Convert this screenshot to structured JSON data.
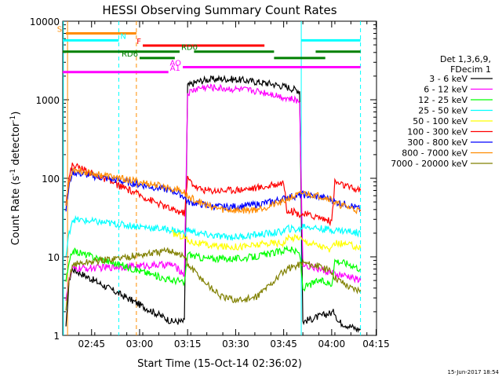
{
  "chart_data": {
    "type": "line",
    "title": "HESSI Observing Summary Count Rates",
    "xlabel": "Start Time (15-Oct-14 02:36:02)",
    "ylabel_main": "Count Rate (s",
    "ylabel_sup1": "-1",
    "ylabel_mid": " detector",
    "ylabel_sup2": "-1",
    "ylabel_end": ")",
    "yscale": "log",
    "ylim": [
      1,
      10000
    ],
    "xlim_minutes": [
      0,
      98
    ],
    "x_ticks": [
      {
        "label": "02:45",
        "minute": 9
      },
      {
        "label": "03:00",
        "minute": 24
      },
      {
        "label": "03:15",
        "minute": 39
      },
      {
        "label": "03:30",
        "minute": 54
      },
      {
        "label": "03:45",
        "minute": 69
      },
      {
        "label": "04:00",
        "minute": 84
      },
      {
        "label": "04:15",
        "minute": 99
      }
    ],
    "y_ticks": [
      {
        "label": "1",
        "value": 1
      },
      {
        "label": "10",
        "value": 10
      },
      {
        "label": "100",
        "value": 100
      },
      {
        "label": "1000",
        "value": 1000
      },
      {
        "label": "10000",
        "value": 10000
      }
    ],
    "legend_header": [
      "Det 1,3,6,9,",
      "FDecim 1"
    ],
    "legend_position": "right",
    "series": [
      {
        "name": "3 - 6 keV",
        "color": "#000000",
        "points": [
          [
            1,
            1.2
          ],
          [
            2,
            5
          ],
          [
            3,
            7
          ],
          [
            34,
            1.5
          ],
          [
            36,
            1.5
          ],
          [
            38,
            1.5
          ],
          [
            39,
            1500
          ],
          [
            42,
            1700
          ],
          [
            45,
            1800
          ],
          [
            50,
            1850
          ],
          [
            55,
            1800
          ],
          [
            60,
            1700
          ],
          [
            65,
            1600
          ],
          [
            70,
            1450
          ],
          [
            74,
            1300
          ],
          [
            75,
            1.5
          ],
          [
            85,
            2
          ],
          [
            86,
            1.5
          ],
          [
            92,
            1.2
          ],
          [
            93,
            1.2
          ]
        ]
      },
      {
        "name": "6 - 12 keV",
        "color": "#ff00ff",
        "points": [
          [
            1,
            3
          ],
          [
            2,
            5
          ],
          [
            3,
            7
          ],
          [
            34,
            8
          ],
          [
            36,
            7
          ],
          [
            38,
            6
          ],
          [
            39,
            1200
          ],
          [
            42,
            1400
          ],
          [
            45,
            1450
          ],
          [
            50,
            1400
          ],
          [
            55,
            1350
          ],
          [
            60,
            1300
          ],
          [
            65,
            1200
          ],
          [
            70,
            1050
          ],
          [
            74,
            950
          ],
          [
            75,
            8
          ],
          [
            80,
            7
          ],
          [
            85,
            6
          ],
          [
            90,
            5.5
          ],
          [
            93,
            5
          ]
        ]
      },
      {
        "name": "12 - 25 keV",
        "color": "#00ff00",
        "points": [
          [
            1,
            5
          ],
          [
            2,
            8
          ],
          [
            3,
            12
          ],
          [
            34,
            5
          ],
          [
            36,
            5
          ],
          [
            38,
            4.5
          ],
          [
            39,
            11
          ],
          [
            42,
            10
          ],
          [
            45,
            9.5
          ],
          [
            50,
            9.5
          ],
          [
            55,
            9.5
          ],
          [
            60,
            10
          ],
          [
            65,
            11
          ],
          [
            69,
            12
          ],
          [
            70,
            13
          ],
          [
            74,
            11
          ],
          [
            75,
            4
          ],
          [
            80,
            5
          ],
          [
            84,
            4.5
          ],
          [
            85,
            9
          ],
          [
            90,
            8
          ],
          [
            93,
            7
          ]
        ]
      },
      {
        "name": "25 - 50 keV",
        "color": "#00ffff",
        "points": [
          [
            1,
            10
          ],
          [
            2,
            20
          ],
          [
            3,
            30
          ],
          [
            34,
            22
          ],
          [
            36,
            21
          ],
          [
            38,
            20
          ],
          [
            39,
            22
          ],
          [
            42,
            20
          ],
          [
            45,
            19
          ],
          [
            50,
            18
          ],
          [
            55,
            18
          ],
          [
            60,
            19
          ],
          [
            65,
            20
          ],
          [
            69,
            21
          ],
          [
            70,
            23
          ],
          [
            74,
            22
          ],
          [
            75,
            25
          ],
          [
            80,
            23
          ],
          [
            84,
            22
          ],
          [
            85,
            22
          ],
          [
            90,
            21
          ],
          [
            93,
            20
          ]
        ]
      },
      {
        "name": "50 - 100 keV",
        "color": "#ffff00",
        "points": [
          [
            34,
            20
          ],
          [
            36,
            19
          ],
          [
            38,
            18
          ],
          [
            39,
            16
          ],
          [
            42,
            15
          ],
          [
            45,
            14
          ],
          [
            50,
            13.5
          ],
          [
            55,
            13.5
          ],
          [
            60,
            14
          ],
          [
            65,
            15
          ],
          [
            69,
            15
          ],
          [
            70,
            17
          ],
          [
            74,
            18
          ],
          [
            75,
            16
          ],
          [
            80,
            14
          ],
          [
            84,
            12
          ],
          [
            85,
            15
          ],
          [
            90,
            14
          ],
          [
            93,
            13
          ]
        ]
      },
      {
        "name": "100 - 300 keV",
        "color": "#ff0000",
        "points": [
          [
            1,
            50
          ],
          [
            2,
            100
          ],
          [
            3,
            150
          ],
          [
            34,
            40
          ],
          [
            36,
            38
          ],
          [
            38,
            36
          ],
          [
            39,
            100
          ],
          [
            42,
            75
          ],
          [
            45,
            70
          ],
          [
            50,
            70
          ],
          [
            55,
            72
          ],
          [
            60,
            75
          ],
          [
            65,
            80
          ],
          [
            69,
            90
          ],
          [
            70,
            40
          ],
          [
            74,
            35
          ],
          [
            75,
            35
          ],
          [
            80,
            32
          ],
          [
            84,
            28
          ],
          [
            85,
            90
          ],
          [
            90,
            75
          ],
          [
            93,
            70
          ]
        ]
      },
      {
        "name": "300 - 800 keV",
        "color": "#0000ff",
        "points": [
          [
            1,
            40
          ],
          [
            2,
            80
          ],
          [
            3,
            120
          ],
          [
            34,
            70
          ],
          [
            36,
            65
          ],
          [
            38,
            58
          ],
          [
            39,
            50
          ],
          [
            42,
            48
          ],
          [
            45,
            45
          ],
          [
            50,
            43
          ],
          [
            55,
            44
          ],
          [
            60,
            46
          ],
          [
            65,
            50
          ],
          [
            69,
            55
          ],
          [
            70,
            58
          ],
          [
            74,
            60
          ],
          [
            75,
            62
          ],
          [
            80,
            58
          ],
          [
            84,
            54
          ],
          [
            85,
            50
          ],
          [
            90,
            45
          ],
          [
            93,
            40
          ]
        ]
      },
      {
        "name": "800 - 7000 keV",
        "color": "#ff8c00",
        "points": [
          [
            1,
            45
          ],
          [
            2,
            90
          ],
          [
            3,
            130
          ],
          [
            34,
            75
          ],
          [
            36,
            72
          ],
          [
            38,
            66
          ],
          [
            39,
            58
          ],
          [
            42,
            52
          ],
          [
            45,
            45
          ],
          [
            50,
            40
          ],
          [
            55,
            39
          ],
          [
            60,
            40
          ],
          [
            65,
            45
          ],
          [
            69,
            50
          ],
          [
            70,
            55
          ],
          [
            74,
            62
          ],
          [
            75,
            65
          ],
          [
            80,
            60
          ],
          [
            84,
            55
          ],
          [
            85,
            48
          ],
          [
            90,
            42
          ],
          [
            93,
            38
          ]
        ]
      },
      {
        "name": "7000 - 20000 keV",
        "color": "#808000",
        "points": [
          [
            1,
            2
          ],
          [
            2,
            5
          ],
          [
            3,
            8
          ],
          [
            34,
            12
          ],
          [
            36,
            11
          ],
          [
            38,
            10
          ],
          [
            39,
            8
          ],
          [
            42,
            6
          ],
          [
            45,
            4.5
          ],
          [
            50,
            3
          ],
          [
            55,
            2.8
          ],
          [
            60,
            3
          ],
          [
            65,
            4.5
          ],
          [
            69,
            6.5
          ],
          [
            70,
            7
          ],
          [
            74,
            8
          ],
          [
            75,
            8.5
          ],
          [
            80,
            7.5
          ],
          [
            84,
            6.5
          ],
          [
            85,
            5.5
          ],
          [
            90,
            4
          ],
          [
            93,
            3.8
          ]
        ]
      }
    ],
    "vertical_markers": [
      {
        "minute": 0.2,
        "color": "#00ffff",
        "style": "solid"
      },
      {
        "minute": 17.5,
        "color": "#00ffff",
        "style": "dashed"
      },
      {
        "minute": 74.5,
        "color": "#00ffff",
        "style": "solid"
      },
      {
        "minute": 93,
        "color": "#00ffff",
        "style": "dashed"
      },
      {
        "minute": 1.5,
        "color": "#ff8c00",
        "style": "solid"
      },
      {
        "minute": 23,
        "color": "#ff8c00",
        "style": "dashed"
      }
    ],
    "state_bars": [
      {
        "label": "S",
        "color": "#ff8c00",
        "row_value": 7000,
        "segments": [
          [
            1,
            23
          ]
        ]
      },
      {
        "label": "N",
        "color": "#00ffff",
        "row_value": 5700,
        "segments": [
          [
            0,
            17.5
          ],
          [
            74.5,
            93
          ]
        ]
      },
      {
        "label": "F",
        "color": "#ff0000",
        "row_value": 4900,
        "segments": [
          [
            25,
            63
          ]
        ]
      },
      {
        "label": "RD0",
        "color": "#008000",
        "row_value": 4100,
        "segments": [
          [
            0,
            36.5
          ],
          [
            41,
            66
          ],
          [
            79,
            93
          ]
        ]
      },
      {
        "label": "RD6",
        "color": "#008000",
        "row_value": 3400,
        "segments": [
          [
            24,
            35
          ],
          [
            66,
            82
          ]
        ]
      },
      {
        "label": "AO",
        "color": "#ff00ff",
        "row_value": 2600,
        "segments": [
          [
            37.5,
            93
          ]
        ]
      },
      {
        "label": "A1",
        "color": "#ff00ff",
        "row_value": 2250,
        "segments": [
          [
            0,
            33
          ]
        ]
      }
    ],
    "grid": false,
    "footer_date": "15-Jun-2017 18:54"
  }
}
